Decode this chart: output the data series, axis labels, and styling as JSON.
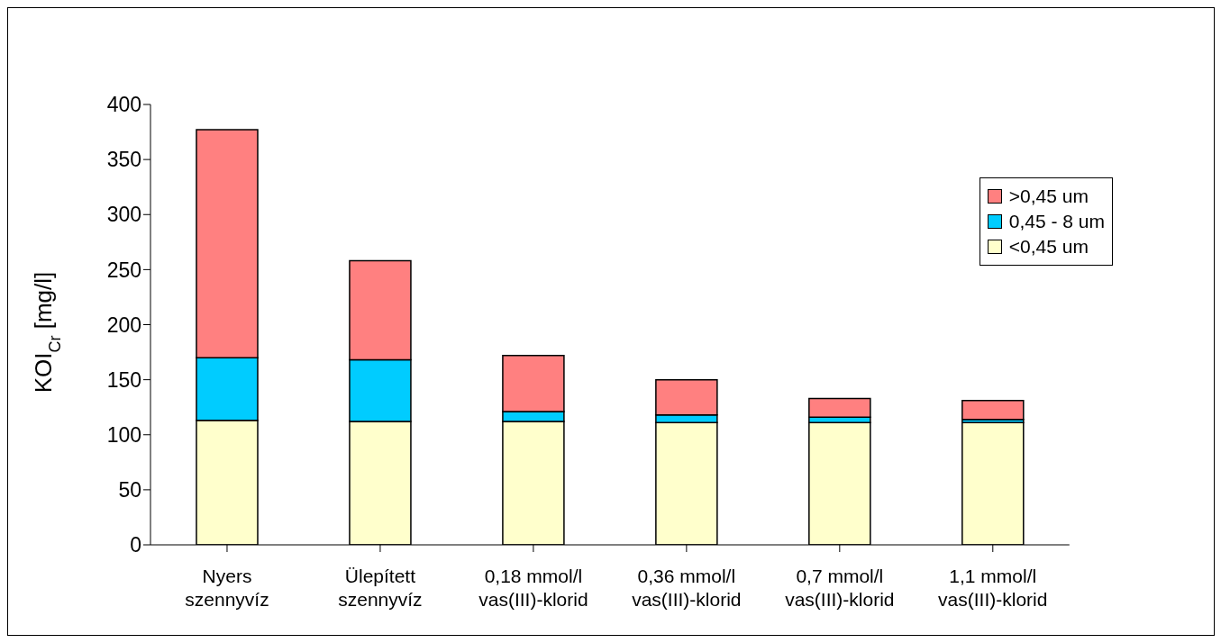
{
  "chart_data": {
    "type": "bar",
    "stacked": true,
    "ylabel": "KOI$_{Cr}$ [mg/l]",
    "categories": [
      "Nyers szennyvíz",
      "Ülepített szennyvíz",
      "0,18 mmol/l vas(III)-klorid",
      "0,36 mmol/l vas(III)-klorid",
      "0,7 mmol/l vas(III)-klorid",
      "1,1 mmol/l vas(III)-klorid"
    ],
    "series": [
      {
        "name": "<0,45 um",
        "color": "#ffffcc",
        "values": [
          113,
          112,
          112,
          111,
          111,
          111
        ]
      },
      {
        "name": "0,45 - 8 um",
        "color": "#00ccff",
        "values": [
          57,
          56,
          9,
          7,
          5,
          3
        ]
      },
      {
        "name": ">0,45 um",
        "color": "#ff8080",
        "values": [
          207,
          90,
          51,
          32,
          17,
          17
        ]
      }
    ],
    "ylim": [
      0,
      400
    ],
    "yticks": [
      0,
      50,
      100,
      150,
      200,
      250,
      300,
      350,
      400
    ],
    "grid": false,
    "legend": "top right"
  }
}
